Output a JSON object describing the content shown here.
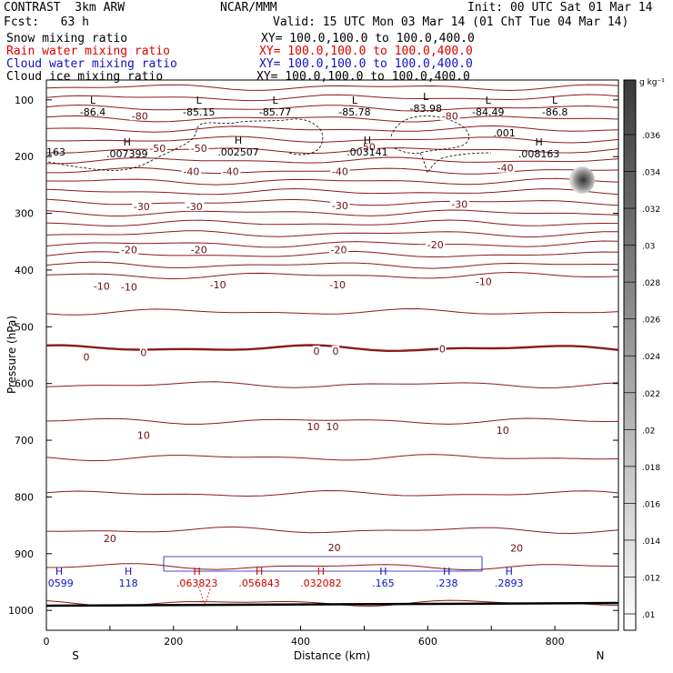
{
  "header": {
    "model": "CONTRAST  3km ARW",
    "center": "NCAR/MMM",
    "init": "Init: 00 UTC Sat 01 Mar 14",
    "fcst": "Fcst:   63 h",
    "valid": "Valid: 15 UTC Mon 03 Mar 14 (01 ChT Tue 04 Mar 14)",
    "fields": [
      {
        "name": "Snow mixing ratio",
        "xy": "XY= 100.0,100.0 to 100.0,400.0",
        "color": "#000000"
      },
      {
        "name": "Rain water mixing ratio",
        "xy": "XY= 100.0,100.0 to 100.0,400.0",
        "color": "#e00000"
      },
      {
        "name": "Cloud water mixing ratio",
        "xy": "XY= 100.0,100.0 to 100.0,400.0",
        "color": "#1010c8"
      },
      {
        "name": "Cloud ice mixing ratio",
        "xy": "XY= 100.0,100.0 to 100.0,400.0",
        "color": "#000000"
      }
    ]
  },
  "colorbar": {
    "unit": "g kg⁻¹",
    "ticks": [
      ".036",
      ".034",
      ".032",
      ".03",
      ".028",
      ".026",
      ".024",
      ".022",
      ".02",
      ".018",
      ".016",
      ".014",
      ".012",
      ".01"
    ]
  },
  "chart_data": {
    "type": "contour",
    "xlabel": "Distance (km)",
    "ylabel": "Pressure (hPa)",
    "x_ticks": [
      0,
      200,
      400,
      600,
      800
    ],
    "x_range": [
      0,
      900
    ],
    "y_ticks": [
      100,
      200,
      300,
      400,
      500,
      600,
      700,
      800,
      900,
      1000
    ],
    "y_range": [
      65,
      1035
    ],
    "end_labels": {
      "left": "S",
      "right": "N"
    },
    "temperature_labels": [
      {
        "text": "-80",
        "x": 147,
        "p": 128
      },
      {
        "text": "-80",
        "x": 635,
        "p": 128
      },
      {
        "text": "-50",
        "x": 175,
        "p": 185
      },
      {
        "text": "-50",
        "x": 240,
        "p": 185
      },
      {
        "text": "-50",
        "x": 505,
        "p": 183
      },
      {
        "text": "-40",
        "x": 228,
        "p": 226
      },
      {
        "text": "-40",
        "x": 290,
        "p": 226
      },
      {
        "text": "-40",
        "x": 462,
        "p": 226
      },
      {
        "text": "-40",
        "x": 722,
        "p": 220
      },
      {
        "text": "-30",
        "x": 150,
        "p": 288
      },
      {
        "text": "-30",
        "x": 233,
        "p": 288
      },
      {
        "text": "-30",
        "x": 462,
        "p": 286
      },
      {
        "text": "-30",
        "x": 650,
        "p": 284
      },
      {
        "text": "-20",
        "x": 130,
        "p": 364
      },
      {
        "text": "-20",
        "x": 240,
        "p": 364
      },
      {
        "text": "-20",
        "x": 460,
        "p": 364
      },
      {
        "text": "-20",
        "x": 612,
        "p": 355
      },
      {
        "text": "-10",
        "x": 87,
        "p": 428
      },
      {
        "text": "-10",
        "x": 130,
        "p": 430
      },
      {
        "text": "-10",
        "x": 270,
        "p": 426
      },
      {
        "text": "-10",
        "x": 458,
        "p": 426
      },
      {
        "text": "-10",
        "x": 688,
        "p": 420
      },
      {
        "text": "0",
        "x": 63,
        "p": 553
      },
      {
        "text": "0",
        "x": 153,
        "p": 545
      },
      {
        "text": "0",
        "x": 425,
        "p": 543
      },
      {
        "text": "0",
        "x": 455,
        "p": 543
      },
      {
        "text": "0",
        "x": 623,
        "p": 539
      },
      {
        "text": "10",
        "x": 420,
        "p": 676
      },
      {
        "text": "10",
        "x": 450,
        "p": 676
      },
      {
        "text": "10",
        "x": 718,
        "p": 682
      },
      {
        "text": "10",
        "x": 153,
        "p": 691
      },
      {
        "text": "20",
        "x": 100,
        "p": 873
      },
      {
        "text": "20",
        "x": 453,
        "p": 889
      },
      {
        "text": "20",
        "x": 740,
        "p": 890
      }
    ],
    "extrema_labels": [
      {
        "marker": "L",
        "value": "-86.4",
        "x": 73,
        "p": 116,
        "color": "#000000"
      },
      {
        "marker": "L",
        "value": "-85.15",
        "x": 240,
        "p": 116,
        "color": "#000000"
      },
      {
        "marker": "L",
        "value": "-85.77",
        "x": 360,
        "p": 116,
        "color": "#000000"
      },
      {
        "marker": "L",
        "value": "-85.78",
        "x": 485,
        "p": 116,
        "color": "#000000"
      },
      {
        "marker": "L",
        "value": "-83.98",
        "x": 597,
        "p": 110,
        "color": "#000000"
      },
      {
        "marker": "L",
        "value": "-84.49",
        "x": 695,
        "p": 116,
        "color": "#000000"
      },
      {
        "marker": "L",
        "value": "-86.8",
        "x": 800,
        "p": 116,
        "color": "#000000"
      },
      {
        "marker": "H",
        "value": ".007399",
        "x": 127,
        "p": 190,
        "color": "#000000"
      },
      {
        "marker": "H",
        "value": ".002507",
        "x": 302,
        "p": 187,
        "color": "#000000"
      },
      {
        "marker": "H",
        "value": ".003141",
        "x": 505,
        "p": 187,
        "color": "#000000"
      },
      {
        "marker": "H",
        "value": ".008163",
        "x": 775,
        "p": 190,
        "color": "#000000"
      },
      {
        "marker": "H",
        "value": ".0599",
        "x": 20,
        "p": 947,
        "color": "#1010c8"
      },
      {
        "marker": "H",
        "value": "118",
        "x": 129,
        "p": 947,
        "color": "#1010c8"
      },
      {
        "marker": "H",
        "value": ".063823",
        "x": 237,
        "p": 947,
        "color": "#cc0000"
      },
      {
        "marker": "H",
        "value": ".056843",
        "x": 335,
        "p": 947,
        "color": "#cc0000"
      },
      {
        "marker": "H",
        "value": ".032082",
        "x": 432,
        "p": 947,
        "color": "#cc0000"
      },
      {
        "marker": "H",
        "value": ".165",
        "x": 530,
        "p": 947,
        "color": "#1010c8"
      },
      {
        "marker": "H",
        "value": ".238",
        "x": 630,
        "p": 947,
        "color": "#1010c8"
      },
      {
        "marker": "H",
        "value": ".2893",
        "x": 728,
        "p": 947,
        "color": "#1010c8"
      }
    ],
    "other_labels": [
      {
        "text": ".001",
        "x": 703,
        "p": 158
      },
      {
        "text": "163",
        "x": 0,
        "p": 192
      }
    ]
  }
}
